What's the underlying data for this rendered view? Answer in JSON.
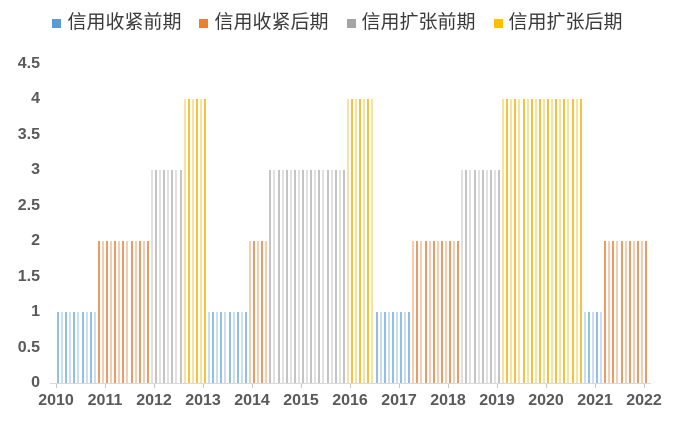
{
  "chart_data": {
    "type": "bar",
    "title": "",
    "xlabel": "",
    "ylabel": "",
    "bar_unit": "one bar per month",
    "x_start_month": "2010-01",
    "x_end_month": "2022-01",
    "x_labels": [
      "2010",
      "2011",
      "2012",
      "2013",
      "2014",
      "2015",
      "2016",
      "2017",
      "2018",
      "2019",
      "2020",
      "2021",
      "2022"
    ],
    "y_ticks": [
      "0",
      "0.5",
      "1",
      "1.5",
      "2",
      "2.5",
      "3",
      "3.5",
      "4",
      "4.5"
    ],
    "ylim": [
      0,
      4.5
    ],
    "grid": false,
    "legend_position": "top",
    "phases": [
      {
        "label": "信用收紧前期",
        "value": 1,
        "legend_color": "#5B9BD5",
        "bar_color": "#92BFE8"
      },
      {
        "label": "信用收紧后期",
        "value": 2,
        "legend_color": "#ED7D31",
        "bar_color": "#EB9C66"
      },
      {
        "label": "信用扩张前期",
        "value": 3,
        "legend_color": "#A5A5A5",
        "bar_color": "#C4C4C4"
      },
      {
        "label": "信用扩张后期",
        "value": 4,
        "legend_color": "#FFC000",
        "bar_color": "#F5C33C"
      }
    ],
    "segments": [
      {
        "phase": "信用收紧前期",
        "value": 1,
        "from": "2010-01",
        "to": "2010-10",
        "months": 10
      },
      {
        "phase": "信用收紧后期",
        "value": 2,
        "from": "2010-11",
        "to": "2011-11",
        "months": 13
      },
      {
        "phase": "信用扩张前期",
        "value": 3,
        "from": "2011-12",
        "to": "2012-07",
        "months": 8
      },
      {
        "phase": "信用扩张后期",
        "value": 4,
        "from": "2012-08",
        "to": "2013-01",
        "months": 6
      },
      {
        "phase": "信用收紧前期",
        "value": 1,
        "from": "2013-02",
        "to": "2013-11",
        "months": 10
      },
      {
        "phase": "信用收紧后期",
        "value": 2,
        "from": "2013-12",
        "to": "2014-04",
        "months": 5
      },
      {
        "phase": "信用扩张前期",
        "value": 3,
        "from": "2014-05",
        "to": "2015-11",
        "months": 19
      },
      {
        "phase": "信用扩张后期",
        "value": 4,
        "from": "2015-12",
        "to": "2016-06",
        "months": 7
      },
      {
        "phase": "信用收紧前期",
        "value": 1,
        "from": "2016-07",
        "to": "2017-03",
        "months": 9
      },
      {
        "phase": "信用收紧后期",
        "value": 2,
        "from": "2017-04",
        "to": "2018-03",
        "months": 12
      },
      {
        "phase": "信用扩张前期",
        "value": 3,
        "from": "2018-04",
        "to": "2019-01",
        "months": 10
      },
      {
        "phase": "信用扩张后期",
        "value": 4,
        "from": "2019-02",
        "to": "2020-09",
        "months": 20
      },
      {
        "phase": "信用收紧前期",
        "value": 1,
        "from": "2020-10",
        "to": "2021-02",
        "months": 5
      },
      {
        "phase": "信用收紧后期",
        "value": 2,
        "from": "2021-03",
        "to": "2022-01",
        "months": 11
      }
    ],
    "monthly_values": [
      1,
      1,
      1,
      1,
      1,
      1,
      1,
      1,
      1,
      1,
      2,
      2,
      2,
      2,
      2,
      2,
      2,
      2,
      2,
      2,
      2,
      2,
      2,
      3,
      3,
      3,
      3,
      3,
      3,
      3,
      3,
      4,
      4,
      4,
      4,
      4,
      4,
      1,
      1,
      1,
      1,
      1,
      1,
      1,
      1,
      1,
      1,
      2,
      2,
      2,
      2,
      2,
      3,
      3,
      3,
      3,
      3,
      3,
      3,
      3,
      3,
      3,
      3,
      3,
      3,
      3,
      3,
      3,
      3,
      3,
      3,
      4,
      4,
      4,
      4,
      4,
      4,
      4,
      1,
      1,
      1,
      1,
      1,
      1,
      1,
      1,
      1,
      2,
      2,
      2,
      2,
      2,
      2,
      2,
      2,
      2,
      2,
      2,
      2,
      3,
      3,
      3,
      3,
      3,
      3,
      3,
      3,
      3,
      3,
      4,
      4,
      4,
      4,
      4,
      4,
      4,
      4,
      4,
      4,
      4,
      4,
      4,
      4,
      4,
      4,
      4,
      4,
      4,
      4,
      1,
      1,
      1,
      1,
      1,
      2,
      2,
      2,
      2,
      2,
      2,
      2,
      2,
      2,
      2,
      2
    ]
  },
  "colors": {
    "background": "#FFFFFF",
    "axis_line": "#D9D9D9",
    "tick": "#C6C6C6",
    "axis_label_text": "#595959",
    "legend_text": "#3A3A3A"
  }
}
